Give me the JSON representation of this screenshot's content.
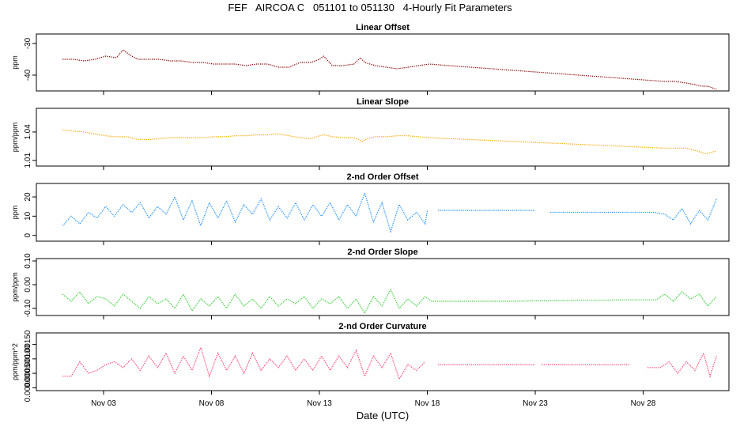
{
  "title": "FEF   AIRCOA C   051101 to 051130   4-Hourly Fit Parameters",
  "xlabel": "Date (UTC)",
  "x_ticks": [
    {
      "day": 3,
      "label": "Nov 03"
    },
    {
      "day": 8,
      "label": "Nov 08"
    },
    {
      "day": 13,
      "label": "Nov 13"
    },
    {
      "day": 18,
      "label": "Nov 18"
    },
    {
      "day": 23,
      "label": "Nov 23"
    },
    {
      "day": 28,
      "label": "Nov 28"
    }
  ],
  "chart_data": [
    {
      "type": "line",
      "title": "Linear Offset",
      "ylabel": "ppm",
      "color": "#8b0000",
      "ylim": [
        -45,
        -27
      ],
      "yticks": [
        {
          "v": -30,
          "label": "-30"
        },
        {
          "v": -40,
          "label": "-40"
        }
      ],
      "series": [
        {
          "x": [
            1.1,
            1.6,
            2.1,
            2.6,
            3.1,
            3.6,
            3.9,
            4.1,
            4.3,
            4.6,
            5.1,
            5.6,
            6.1,
            6.6,
            7.1,
            7.6,
            8.1,
            8.6,
            9.1,
            9.6,
            10.1,
            10.6,
            11.1,
            11.6,
            12.1,
            12.6,
            13.0,
            13.2,
            13.6,
            14.1,
            14.6,
            14.9,
            15.1,
            15.6,
            16.1,
            16.6,
            17.1,
            17.6,
            18.1,
            19.0,
            20.0,
            21.0,
            22.0,
            23.0,
            24.0,
            25.0,
            26.0,
            27.0,
            28.0,
            29.0,
            29.5,
            30.0,
            30.4,
            30.7,
            31.0,
            31.4
          ],
          "y": [
            -35,
            -35,
            -35.5,
            -35,
            -34,
            -34.5,
            -32,
            -33,
            -34,
            -35,
            -35,
            -35,
            -35.5,
            -35.5,
            -36,
            -36,
            -36.5,
            -36.5,
            -36.5,
            -37,
            -36.5,
            -36.5,
            -37.5,
            -37.5,
            -36,
            -36,
            -35,
            -34,
            -37,
            -37,
            -36.5,
            -34.5,
            -36,
            -37,
            -37.5,
            -38,
            -37.5,
            -37,
            -36.5,
            -37,
            -37.5,
            -38,
            -38.5,
            -39,
            -39.5,
            -40,
            -40.5,
            -41,
            -41.5,
            -42,
            -42,
            -42.5,
            -43,
            -43.5,
            -43.5,
            -44.5
          ]
        }
      ]
    },
    {
      "type": "line",
      "title": "Linear Slope",
      "ylabel": "ppm/ppm",
      "color": "#ffa500",
      "ylim": [
        1.004,
        1.065
      ],
      "yticks": [
        {
          "v": 1.01,
          "label": "1.01"
        },
        {
          "v": 1.04,
          "label": "1.04"
        }
      ],
      "series": [
        {
          "x": [
            1.1,
            1.6,
            2.1,
            2.6,
            3.1,
            3.6,
            4.1,
            4.6,
            5.1,
            5.6,
            6.1,
            6.6,
            7.1,
            7.6,
            8.1,
            8.6,
            9.1,
            9.6,
            10.1,
            10.6,
            11.1,
            11.6,
            12.1,
            12.6,
            13.0,
            13.2,
            13.6,
            14.1,
            14.6,
            15.0,
            15.2,
            15.6,
            16.1,
            16.6,
            17.1,
            17.6,
            18.1,
            19.0,
            20.0,
            21.0,
            22.0,
            23.0,
            24.0,
            25.0,
            26.0,
            27.0,
            28.0,
            29.0,
            29.6,
            30.0,
            30.5,
            30.9,
            31.4
          ],
          "y": [
            1.042,
            1.041,
            1.04,
            1.038,
            1.036,
            1.035,
            1.035,
            1.032,
            1.032,
            1.033,
            1.034,
            1.034,
            1.034,
            1.034,
            1.035,
            1.035,
            1.036,
            1.036,
            1.037,
            1.037,
            1.038,
            1.036,
            1.034,
            1.033,
            1.036,
            1.037,
            1.035,
            1.034,
            1.034,
            1.03,
            1.033,
            1.035,
            1.035,
            1.036,
            1.036,
            1.035,
            1.034,
            1.033,
            1.032,
            1.031,
            1.03,
            1.029,
            1.028,
            1.027,
            1.026,
            1.025,
            1.024,
            1.023,
            1.023,
            1.023,
            1.02,
            1.017,
            1.02
          ]
        }
      ]
    },
    {
      "type": "line",
      "title": "2-nd Order Offset",
      "ylabel": "ppm",
      "color": "#1e90ff",
      "ylim": [
        -3,
        27
      ],
      "yticks": [
        {
          "v": 0,
          "label": "0"
        },
        {
          "v": 10,
          "label": "10"
        },
        {
          "v": 20,
          "label": "20"
        }
      ],
      "series": [
        {
          "x": [
            1.1,
            1.5,
            1.9,
            2.3,
            2.7,
            3.1,
            3.5,
            3.9,
            4.3,
            4.7,
            5.1,
            5.5,
            5.9,
            6.3,
            6.7,
            7.1,
            7.5,
            7.9,
            8.3,
            8.7,
            9.1,
            9.5,
            9.9,
            10.3,
            10.7,
            11.1,
            11.5,
            11.9,
            12.3,
            12.7,
            13.1,
            13.5,
            13.9,
            14.3,
            14.7,
            15.1,
            15.5,
            15.9,
            16.3,
            16.7,
            17.1,
            17.5,
            17.9,
            18.0,
            null,
            18.5,
            19.5,
            20.5,
            21.5,
            22.5,
            23.0,
            null,
            23.2,
            null,
            23.7,
            24.5,
            25.5,
            26.5,
            27.5,
            28.5,
            29.0,
            29.4,
            29.8,
            30.2,
            30.6,
            31.0,
            31.4
          ],
          "y": [
            5,
            10,
            6,
            12,
            9,
            15,
            10,
            16,
            12,
            17,
            9,
            15,
            11,
            20,
            8,
            18,
            5,
            17,
            9,
            18,
            7,
            16,
            11,
            19,
            8,
            15,
            9,
            17,
            8,
            16,
            10,
            17,
            8,
            16,
            10,
            22,
            7,
            17,
            2,
            16,
            8,
            12,
            6,
            13,
            null,
            13,
            13,
            13,
            13,
            13,
            13,
            null,
            13,
            null,
            12,
            12,
            12,
            12,
            12,
            12,
            11,
            8,
            14,
            6,
            13,
            8,
            19
          ]
        }
      ]
    },
    {
      "type": "line",
      "title": "2-nd Order Slope",
      "ylabel": "ppm/ppm",
      "color": "#32cd32",
      "ylim": [
        -0.13,
        0.11
      ],
      "yticks": [
        {
          "v": -0.1,
          "label": "-0.10"
        },
        {
          "v": 0,
          "label": "0.00"
        },
        {
          "v": 0.1,
          "label": "0.10"
        }
      ],
      "series": [
        {
          "x": [
            1.1,
            1.5,
            1.9,
            2.3,
            2.7,
            3.1,
            3.5,
            3.9,
            4.3,
            4.7,
            5.1,
            5.5,
            5.9,
            6.3,
            6.7,
            7.1,
            7.5,
            7.9,
            8.3,
            8.7,
            9.1,
            9.5,
            9.9,
            10.3,
            10.7,
            11.1,
            11.5,
            11.9,
            12.3,
            12.7,
            13.1,
            13.5,
            13.9,
            14.3,
            14.7,
            15.1,
            15.5,
            15.9,
            16.3,
            16.7,
            17.1,
            17.5,
            17.9,
            18.2,
            19.0,
            20.0,
            21.0,
            22.0,
            23.0,
            24.0,
            25.0,
            26.0,
            27.0,
            28.0,
            28.6,
            29.0,
            29.4,
            29.8,
            30.2,
            30.6,
            31.0,
            31.4
          ],
          "y": [
            -0.04,
            -0.07,
            -0.03,
            -0.08,
            -0.05,
            -0.06,
            -0.09,
            -0.04,
            -0.07,
            -0.1,
            -0.05,
            -0.08,
            -0.06,
            -0.1,
            -0.04,
            -0.11,
            -0.06,
            -0.09,
            -0.05,
            -0.1,
            -0.04,
            -0.09,
            -0.06,
            -0.1,
            -0.05,
            -0.09,
            -0.06,
            -0.08,
            -0.05,
            -0.1,
            -0.06,
            -0.08,
            -0.05,
            -0.1,
            -0.06,
            -0.12,
            -0.05,
            -0.09,
            -0.02,
            -0.1,
            -0.06,
            -0.09,
            -0.05,
            -0.07,
            -0.07,
            -0.07,
            -0.07,
            -0.07,
            -0.068,
            -0.068,
            -0.066,
            -0.066,
            -0.064,
            -0.064,
            -0.064,
            -0.04,
            -0.07,
            -0.03,
            -0.06,
            -0.04,
            -0.09,
            -0.05
          ]
        }
      ]
    },
    {
      "type": "line",
      "title": "2-nd Order Curvature",
      "ylabel": "ppm/ppm^2",
      "color": "#ff4070",
      "ylim": [
        -0.0001,
        0.0019
      ],
      "yticks": [
        {
          "v": 0,
          "label": "0.00000"
        },
        {
          "v": 0.0005,
          "label": "0.00050"
        },
        {
          "v": 0.001,
          "label": "0.00100"
        },
        {
          "v": 0.0015,
          "label": "0.00150"
        }
      ],
      "series": [
        {
          "x": [
            1.1,
            1.5,
            1.9,
            2.3,
            2.7,
            3.1,
            3.5,
            3.9,
            4.3,
            4.7,
            5.1,
            5.5,
            5.9,
            6.3,
            6.7,
            7.1,
            7.5,
            7.9,
            8.3,
            8.7,
            9.1,
            9.5,
            9.9,
            10.3,
            10.7,
            11.1,
            11.5,
            11.9,
            12.3,
            12.7,
            13.1,
            13.5,
            13.9,
            14.3,
            14.7,
            15.1,
            15.5,
            15.9,
            16.3,
            16.7,
            17.1,
            17.5,
            17.9,
            null,
            18.5,
            19.5,
            20.5,
            21.5,
            22.5,
            23.0,
            null,
            23.3,
            24.5,
            25.5,
            26.5,
            27.4,
            null,
            28.2,
            28.8,
            29.2,
            29.6,
            30.0,
            30.4,
            30.8,
            31.1,
            31.4
          ],
          "y": [
            0.0004,
            0.0004,
            0.0009,
            0.0005,
            0.0006,
            0.0008,
            0.0009,
            0.0007,
            0.001,
            0.0006,
            0.0011,
            0.0007,
            0.0012,
            0.0005,
            0.0011,
            0.0006,
            0.0014,
            0.0004,
            0.0012,
            0.0006,
            0.0011,
            0.0005,
            0.0012,
            0.0006,
            0.001,
            0.0007,
            0.0011,
            0.0006,
            0.001,
            0.0006,
            0.0011,
            0.0006,
            0.0011,
            0.0007,
            0.0013,
            0.0004,
            0.0011,
            0.0007,
            0.0012,
            0.0003,
            0.0008,
            0.0006,
            0.0009,
            null,
            0.0008,
            0.0008,
            0.0008,
            0.0008,
            0.0008,
            0.0008,
            null,
            0.0008,
            0.0008,
            0.0008,
            0.0008,
            0.0008,
            null,
            0.0007,
            0.0007,
            0.0009,
            0.0005,
            0.0009,
            0.0006,
            0.0012,
            0.0004,
            0.0011
          ]
        }
      ]
    }
  ]
}
